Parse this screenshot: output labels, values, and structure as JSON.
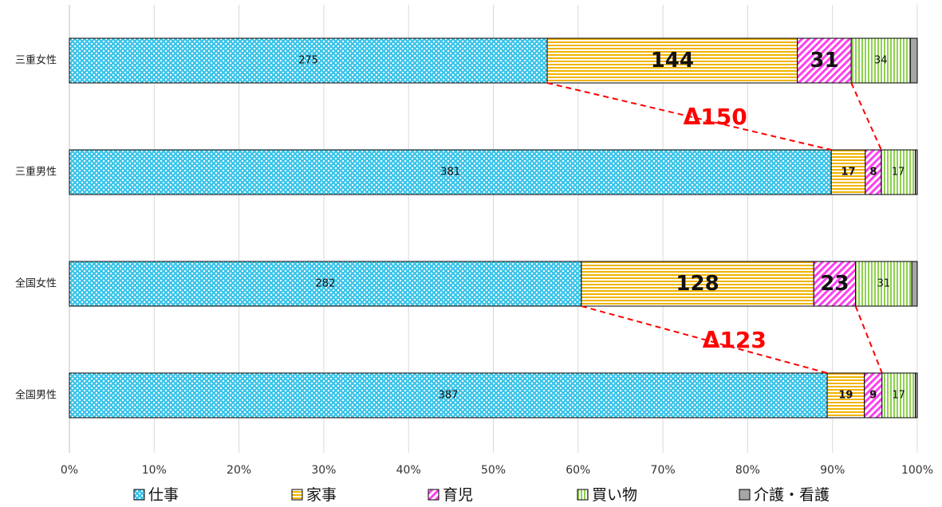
{
  "chart_data": {
    "type": "bar",
    "orientation": "horizontal",
    "stacked": "percent",
    "categories": [
      "三重女性",
      "三重男性",
      "全国女性",
      "全国男性"
    ],
    "series": [
      {
        "name": "仕事",
        "color": "#41c6ea",
        "pattern": "dotted-diamond",
        "values": [
          275,
          381,
          282,
          387
        ],
        "labels": [
          "275",
          "381",
          "282",
          "387"
        ]
      },
      {
        "name": "家事",
        "color": "#f0b400",
        "pattern": "horizontal-lines",
        "values": [
          144,
          17,
          128,
          19
        ],
        "labels": [
          "144",
          "17",
          "128",
          "19"
        ]
      },
      {
        "name": "育児",
        "color": "#ff3ff0",
        "pattern": "diagonal-hatch",
        "values": [
          31,
          8,
          23,
          9
        ],
        "labels": [
          "31",
          "8",
          "23",
          "9"
        ]
      },
      {
        "name": "買い物",
        "color": "#8fd14f",
        "pattern": "vertical-lines",
        "values": [
          34,
          17,
          31,
          17
        ],
        "labels": [
          "34",
          "17",
          "31",
          "17"
        ]
      },
      {
        "name": "介護・看護",
        "color": "#a6a6a6",
        "pattern": "solid",
        "values": [
          4,
          1,
          3,
          1
        ],
        "labels": [
          "",
          "",
          "",
          ""
        ]
      }
    ],
    "label_styles": [
      [
        "normal",
        "bold-large",
        "bold-large",
        "normal",
        "none"
      ],
      [
        "normal",
        "bold-small",
        "bold-small",
        "normal",
        "none"
      ],
      [
        "normal",
        "bold-large",
        "bold-large",
        "normal",
        "none"
      ],
      [
        "normal",
        "bold-small",
        "bold-small",
        "normal",
        "none"
      ]
    ],
    "x_ticks": [
      "0%",
      "10%",
      "20%",
      "30%",
      "40%",
      "50%",
      "60%",
      "70%",
      "80%",
      "90%",
      "100%"
    ],
    "xlim": [
      0,
      100
    ],
    "grid": true,
    "legend_position": "bottom",
    "annotations": [
      {
        "text": "Δ150",
        "between": [
          "三重女性",
          "三重男性"
        ],
        "color": "#ff0000"
      },
      {
        "text": "Δ123",
        "between": [
          "全国女性",
          "全国男性"
        ],
        "color": "#ff0000"
      }
    ]
  }
}
